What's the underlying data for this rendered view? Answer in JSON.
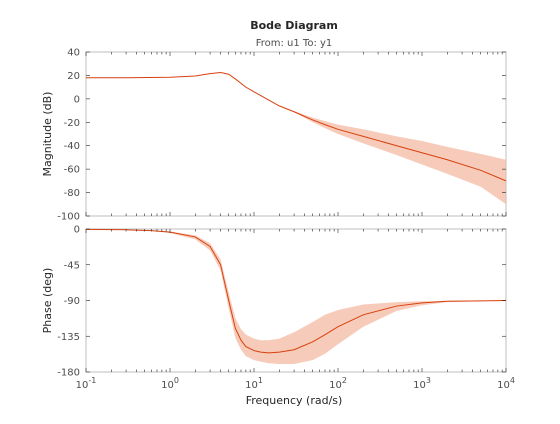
{
  "figure": {
    "title": "Bode Diagram",
    "subtitle": "From: u1  To: y1",
    "xlabel": "Frequency  (rad/s)"
  },
  "colors": {
    "line": "#d8410e",
    "band": "#f4b9a3",
    "frame": "#bfbfbf",
    "text": "#262626"
  },
  "chart_data": [
    {
      "type": "line",
      "name": "magnitude",
      "ylabel": "Magnitude (dB)",
      "xscale": "log",
      "xlim": [
        0.1,
        10000
      ],
      "ylim": [
        -100,
        40
      ],
      "yticks": [
        40,
        20,
        0,
        -20,
        -40,
        -60,
        -80,
        -100
      ],
      "x": [
        0.1,
        0.3,
        1,
        2,
        3,
        4,
        5,
        6,
        8,
        10,
        15,
        20,
        30,
        50,
        70,
        100,
        200,
        500,
        1000,
        2000,
        5000,
        10000
      ],
      "series": [
        {
          "values": [
            18,
            18,
            18.5,
            19.5,
            21.5,
            22.5,
            21,
            17,
            10,
            6,
            -1,
            -6,
            -11,
            -18,
            -22,
            -26,
            -32,
            -40,
            -46,
            -52,
            -61,
            -70
          ]
        }
      ],
      "band_upper": [
        18,
        18,
        18.5,
        19.5,
        21.5,
        22.5,
        21,
        17,
        10,
        6,
        -1,
        -6,
        -10.5,
        -16,
        -19,
        -22,
        -26,
        -32,
        -36,
        -41,
        -47,
        -52
      ],
      "band_lower": [
        18,
        18,
        18.5,
        19.5,
        21.5,
        22.5,
        21,
        17,
        10,
        6,
        -1,
        -6,
        -11.5,
        -20,
        -25,
        -30,
        -38,
        -48,
        -56,
        -64,
        -75,
        -90
      ]
    },
    {
      "type": "line",
      "name": "phase",
      "ylabel": "Phase (deg)",
      "xscale": "log",
      "xlim": [
        0.1,
        10000
      ],
      "ylim": [
        -180,
        0
      ],
      "yticks": [
        0,
        -45,
        -90,
        -135,
        -180
      ],
      "x": [
        0.1,
        0.3,
        0.6,
        1,
        2,
        3,
        4,
        5,
        6,
        7,
        8,
        10,
        12,
        15,
        20,
        30,
        50,
        70,
        100,
        200,
        500,
        1000,
        2000,
        5000,
        10000
      ],
      "series": [
        {
          "values": [
            -0.5,
            -1,
            -2,
            -4,
            -10,
            -22,
            -45,
            -90,
            -125,
            -140,
            -148,
            -153,
            -155,
            -156,
            -155,
            -152,
            -142,
            -133,
            -123,
            -108,
            -97,
            -93,
            -91,
            -90.5,
            -90
          ]
        }
      ],
      "band_upper": [
        -0.5,
        -1,
        -2,
        -3,
        -8,
        -18,
        -38,
        -80,
        -112,
        -126,
        -133,
        -138,
        -140,
        -140,
        -138,
        -130,
        -117,
        -108,
        -102,
        -95,
        -92,
        -91,
        -90.5,
        -90,
        -90
      ],
      "band_lower": [
        -0.5,
        -1,
        -2.5,
        -5,
        -13,
        -27,
        -52,
        -100,
        -137,
        -152,
        -160,
        -165,
        -167,
        -169,
        -170,
        -170,
        -165,
        -157,
        -145,
        -123,
        -103,
        -96,
        -92,
        -91,
        -90
      ]
    }
  ],
  "xticks": {
    "values": [
      0.1,
      1,
      10,
      100,
      1000,
      10000
    ],
    "bases": [
      "10",
      "10",
      "10",
      "10",
      "10",
      "10"
    ],
    "exponents": [
      "-1",
      "0",
      "1",
      "2",
      "3",
      "4"
    ]
  }
}
